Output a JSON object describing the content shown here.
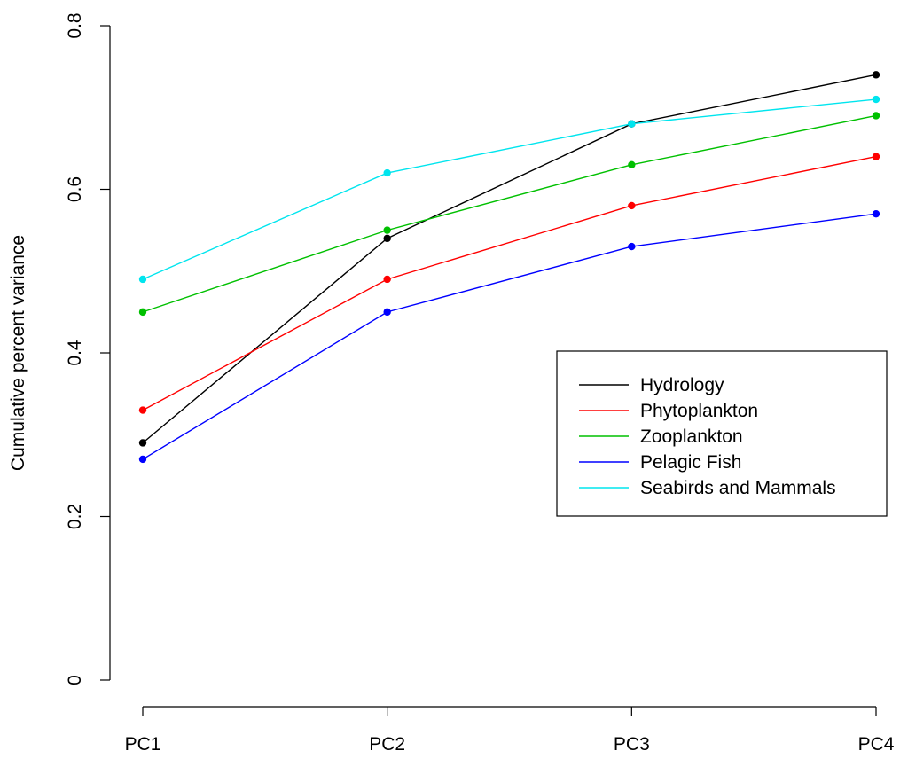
{
  "chart_data": {
    "type": "line",
    "title": "",
    "xlabel": "",
    "ylabel": "Cumulative percent variance",
    "categories": [
      "PC1",
      "PC2",
      "PC3",
      "PC4"
    ],
    "ylim": [
      0,
      0.8
    ],
    "yticks": [
      0,
      0.2,
      0.4,
      0.6,
      0.8
    ],
    "ytick_labels": [
      "0",
      "0.2",
      "0.4",
      "0.6",
      "0.8"
    ],
    "grid": false,
    "legend_position": "right",
    "series": [
      {
        "name": "Hydrology",
        "color": "#000000",
        "values": [
          0.29,
          0.54,
          0.68,
          0.74
        ]
      },
      {
        "name": "Phytoplankton",
        "color": "#ff0000",
        "values": [
          0.33,
          0.49,
          0.58,
          0.64
        ]
      },
      {
        "name": "Zooplankton",
        "color": "#00c000",
        "values": [
          0.45,
          0.55,
          0.63,
          0.69
        ]
      },
      {
        "name": "Pelagic Fish",
        "color": "#0000ff",
        "values": [
          0.27,
          0.45,
          0.53,
          0.57
        ]
      },
      {
        "name": "Seabirds and Mammals",
        "color": "#00e5ee",
        "values": [
          0.49,
          0.62,
          0.68,
          0.71
        ]
      }
    ]
  }
}
